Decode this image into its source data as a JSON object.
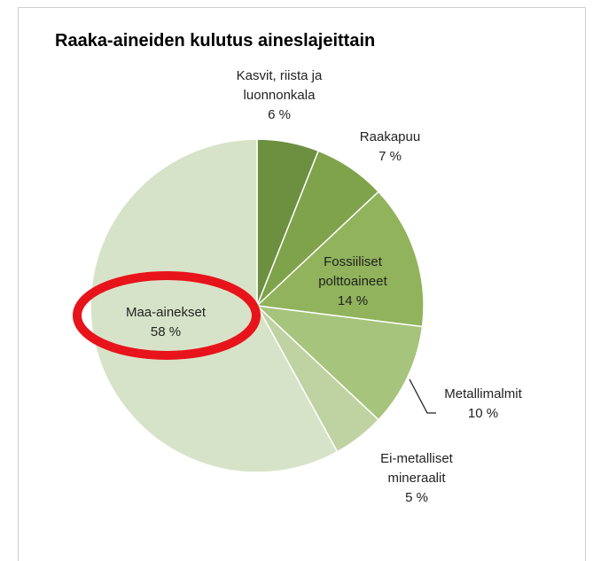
{
  "chart_data": {
    "type": "pie",
    "title": "Raaka-aineiden kulutus aineslajeittain",
    "categories": [
      "Kasvit, riista ja luonnonkala",
      "Raakapuu",
      "Fossiiliset polttoaineet",
      "Metallimalmit",
      "Ei-metalliset mineraalit",
      "Maa-ainekset"
    ],
    "values": [
      6,
      7,
      14,
      10,
      5,
      58
    ],
    "value_labels": [
      "6 %",
      "7 %",
      "14 %",
      "10 %",
      "5 %",
      "58 %"
    ],
    "colors": [
      "#6d8f40",
      "#7fa34b",
      "#90b35b",
      "#a6c47b",
      "#bfd3a2",
      "#d7e3c8"
    ]
  }
}
